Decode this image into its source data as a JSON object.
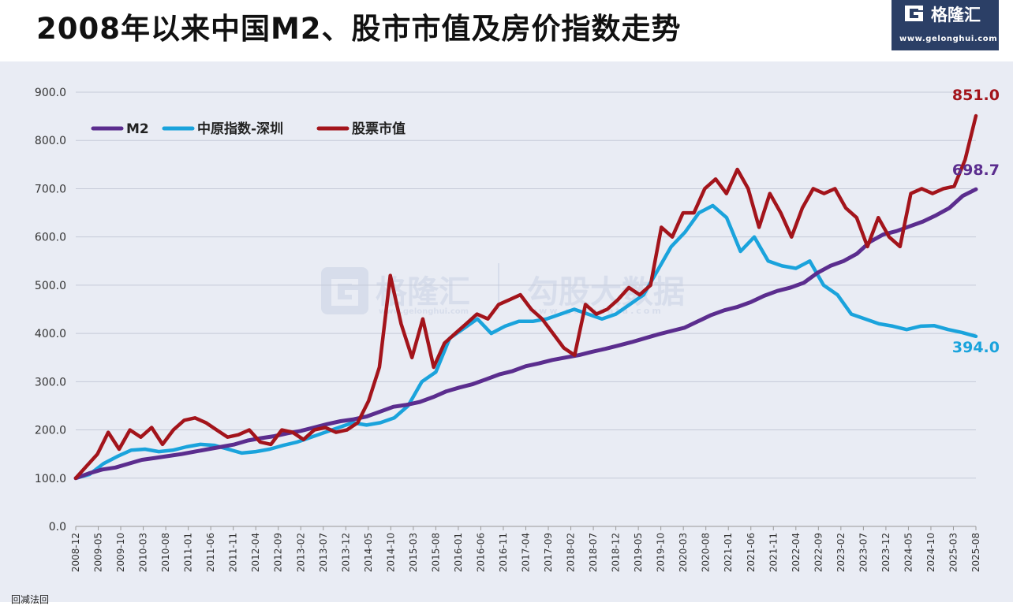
{
  "title": "2008年以来中国M2、股市市值及房价指数走势",
  "logo": {
    "name": "格隆汇",
    "url": "www.gelonghui.com"
  },
  "watermark": {
    "brand": "格隆汇",
    "product": "勾股大数据",
    "url_left": "www.gelonghui.com",
    "url_right": "www.gogudata.com"
  },
  "qr_label": "回减法回",
  "colors": {
    "m2": "#5b2d8e",
    "housing": "#1aa3dc",
    "stock": "#a3141b",
    "grid": "#c5cad8",
    "panel": "#e9ecf4"
  },
  "chart_data": {
    "type": "line",
    "title": "2008年以来中国M2、股市市值及房价指数走势",
    "xlabel": "",
    "ylabel": "",
    "ylim": [
      0,
      900
    ],
    "yticks": [
      "0.0",
      "100.0",
      "200.0",
      "300.0",
      "400.0",
      "500.0",
      "600.0",
      "700.0",
      "800.0",
      "900.0"
    ],
    "x_tick_labels": [
      "2008-12",
      "2009-05",
      "2009-10",
      "2010-03",
      "2010-08",
      "2011-01",
      "2011-06",
      "2011-11",
      "2012-04",
      "2012-09",
      "2013-02",
      "2013-07",
      "2013-12",
      "2014-05",
      "2014-10",
      "2015-03",
      "2015-08",
      "2016-01",
      "2016-06",
      "2016-11",
      "2017-04",
      "2017-09",
      "2018-02",
      "2018-07",
      "2018-12",
      "2019-05",
      "2019-10",
      "2020-03",
      "2020-08",
      "2021-01",
      "2021-06",
      "2021-11",
      "2022-04",
      "2022-09",
      "2023-02",
      "2023-07",
      "2023-12",
      "2024-05",
      "2024-10",
      "2025-03",
      "2025-08"
    ],
    "legend_position": "top-left",
    "grid": true,
    "series": [
      {
        "name": "M2",
        "color": "#5b2d8e",
        "end_label": "698.7",
        "values": [
          100,
          110,
          118,
          122,
          130,
          138,
          142,
          146,
          150,
          155,
          160,
          165,
          170,
          178,
          183,
          187,
          193,
          198,
          205,
          212,
          218,
          222,
          228,
          238,
          248,
          252,
          258,
          268,
          280,
          288,
          295,
          305,
          315,
          322,
          332,
          338,
          345,
          350,
          355,
          362,
          368,
          375,
          382,
          390,
          398,
          405,
          412,
          425,
          438,
          448,
          455,
          465,
          478,
          488,
          495,
          505,
          525,
          540,
          550,
          565,
          590,
          605,
          612,
          622,
          632,
          645,
          660,
          685,
          698.7
        ]
      },
      {
        "name": "中原指数-深圳",
        "color": "#1aa3dc",
        "end_label": "394.0",
        "values": [
          100,
          108,
          130,
          145,
          158,
          160,
          155,
          158,
          165,
          170,
          168,
          160,
          152,
          155,
          160,
          168,
          175,
          185,
          195,
          205,
          215,
          210,
          215,
          225,
          250,
          300,
          320,
          390,
          410,
          430,
          400,
          415,
          425,
          425,
          430,
          440,
          450,
          440,
          430,
          440,
          460,
          480,
          530,
          580,
          610,
          650,
          665,
          640,
          570,
          600,
          550,
          540,
          535,
          550,
          500,
          480,
          440,
          430,
          420,
          415,
          408,
          415,
          416,
          408,
          402,
          394
        ]
      },
      {
        "name": "股票市值",
        "color": "#a3141b",
        "end_label": "851.0",
        "values": [
          100,
          125,
          150,
          195,
          160,
          200,
          185,
          205,
          170,
          200,
          220,
          225,
          215,
          200,
          185,
          190,
          200,
          175,
          170,
          200,
          195,
          180,
          200,
          205,
          195,
          200,
          215,
          260,
          330,
          520,
          420,
          350,
          430,
          330,
          380,
          400,
          420,
          440,
          430,
          460,
          470,
          480,
          450,
          430,
          400,
          370,
          355,
          460,
          440,
          450,
          470,
          495,
          480,
          500,
          620,
          600,
          650,
          650,
          700,
          720,
          690,
          740,
          700,
          620,
          690,
          650,
          600,
          660,
          700,
          690,
          700,
          660,
          640,
          580,
          640,
          600,
          580,
          690,
          700,
          690,
          700,
          705,
          760,
          851
        ]
      }
    ]
  }
}
